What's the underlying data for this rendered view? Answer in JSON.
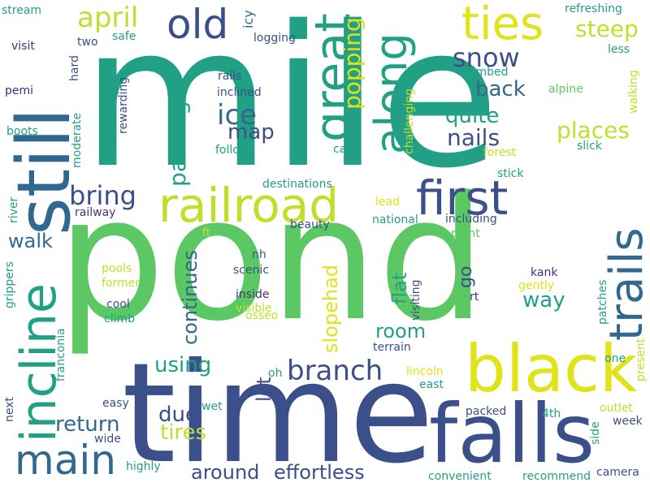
{
  "palette": {
    "teal": "#21a086",
    "green": "#5cc863",
    "lime": "#bfe02a",
    "yellow": "#e0e318",
    "navy": "#3b4f8a",
    "purple": "#472d7b",
    "blue": "#31688e",
    "cyan": "#2a9d8f",
    "lightgreen": "#7ad151"
  },
  "words": [
    "mile",
    "pond",
    "time",
    "still",
    "black",
    "falls",
    "railroad",
    "first",
    "incline",
    "trails",
    "great",
    "along",
    "ties",
    "old",
    "main",
    "april",
    "bring",
    "snow",
    "ice",
    "steep",
    "popping",
    "parking",
    "map",
    "back",
    "quite",
    "nails",
    "places",
    "walk",
    "branch",
    "using",
    "return",
    "continues",
    "slopehad",
    "flat",
    "way",
    "room",
    "lot",
    "due",
    "tires",
    "around",
    "effortless",
    "go",
    "icy",
    "visit",
    "two",
    "safe",
    "logging",
    "rails",
    "inclined",
    "follows",
    "climbed",
    "refreshing",
    "less",
    "alpine",
    "walking",
    "slick",
    "forest",
    "case",
    "stick",
    "challenging",
    "stream",
    "hard",
    "pemi",
    "boots",
    "moderate",
    "rewarding",
    "destinations",
    "river",
    "railway",
    "lead",
    "national",
    "including",
    "beauty",
    "ft",
    "point",
    "nh",
    "scenic",
    "pools",
    "former",
    "inside",
    "cool",
    "climb",
    "kank",
    "gently",
    "rt",
    "visible",
    "osseo",
    "patches",
    "grippers",
    "franconia",
    "visiting",
    "terrain",
    "oh",
    "lincoln",
    "east",
    "easy",
    "present",
    "one",
    "next",
    "wet",
    "packed",
    "4th",
    "outlet",
    "week",
    "side",
    "wide",
    "highly",
    "convenient",
    "recommend",
    "camera"
  ]
}
